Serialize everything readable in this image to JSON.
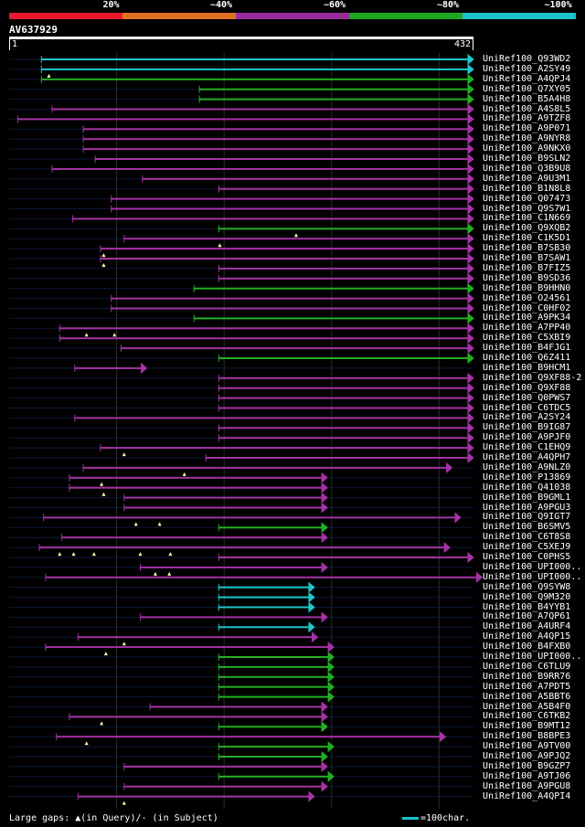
{
  "legend": {
    "segments": [
      {
        "label": "20%",
        "color": "#e8192c"
      },
      {
        "label": "~40%",
        "color": "#e0711e"
      },
      {
        "label": "~60%",
        "color": "#9b2a9c"
      },
      {
        "label": "~80%",
        "color": "#1fa51f"
      },
      {
        "label": "~100%",
        "color": "#19c3c8"
      }
    ]
  },
  "query": {
    "id": "AV637929",
    "length_start": "1",
    "length_end": "432",
    "length": 432
  },
  "colors": {
    "20": "#e8192c",
    "40": "#e0711e",
    "60": "#a533a5",
    "80": "#22b022",
    "100": "#1cc6cc",
    "track": "#0c1a3a",
    "grid": "#2a2a2a",
    "gap": "#ffffaa"
  },
  "chart_data": {
    "type": "alignment-overview",
    "query_length": 432,
    "hits": [
      {
        "name": "UniRef100_Q93WD2",
        "start": 30,
        "end": 432,
        "identity": 100,
        "gaps": []
      },
      {
        "name": "UniRef100_A2SY49",
        "start": 30,
        "end": 432,
        "identity": 100,
        "gaps": [
          37
        ]
      },
      {
        "name": "UniRef100_A4QPJ4",
        "start": 30,
        "end": 432,
        "identity": 80,
        "gaps": []
      },
      {
        "name": "UniRef100_Q7XY05",
        "start": 177,
        "end": 432,
        "identity": 80,
        "gaps": []
      },
      {
        "name": "UniRef100_B5A4H8",
        "start": 177,
        "end": 432,
        "identity": 80,
        "gaps": []
      },
      {
        "name": "UniRef100_A4S8L5",
        "start": 40,
        "end": 432,
        "identity": 60,
        "gaps": []
      },
      {
        "name": "UniRef100_A9TZF8",
        "start": 8,
        "end": 432,
        "identity": 60,
        "gaps": []
      },
      {
        "name": "UniRef100_A9P071",
        "start": 69,
        "end": 432,
        "identity": 60,
        "gaps": []
      },
      {
        "name": "UniRef100_A9NYR8",
        "start": 69,
        "end": 432,
        "identity": 60,
        "gaps": []
      },
      {
        "name": "UniRef100_A9NKX0",
        "start": 69,
        "end": 432,
        "identity": 60,
        "gaps": []
      },
      {
        "name": "UniRef100_B9SLN2",
        "start": 80,
        "end": 432,
        "identity": 60,
        "gaps": []
      },
      {
        "name": "UniRef100_Q3B9U8",
        "start": 40,
        "end": 432,
        "identity": 60,
        "gaps": []
      },
      {
        "name": "UniRef100_A9U3M1",
        "start": 124,
        "end": 432,
        "identity": 60,
        "gaps": []
      },
      {
        "name": "UniRef100_B1N8L8",
        "start": 195,
        "end": 432,
        "identity": 60,
        "gaps": []
      },
      {
        "name": "UniRef100_Q07473",
        "start": 95,
        "end": 432,
        "identity": 60,
        "gaps": []
      },
      {
        "name": "UniRef100_Q9S7W1",
        "start": 95,
        "end": 432,
        "identity": 60,
        "gaps": []
      },
      {
        "name": "UniRef100_C1N669",
        "start": 59,
        "end": 432,
        "identity": 60,
        "gaps": []
      },
      {
        "name": "UniRef100_Q9XQB2",
        "start": 195,
        "end": 432,
        "identity": 80,
        "gaps": [
          267
        ]
      },
      {
        "name": "UniRef100_C1K5D1",
        "start": 107,
        "end": 432,
        "identity": 60,
        "gaps": [
          196
        ]
      },
      {
        "name": "UniRef100_B7SB30",
        "start": 85,
        "end": 432,
        "identity": 60,
        "gaps": [
          88
        ]
      },
      {
        "name": "UniRef100_B7SAW1",
        "start": 85,
        "end": 432,
        "identity": 60,
        "gaps": [
          88
        ]
      },
      {
        "name": "UniRef100_B7FIZ5",
        "start": 195,
        "end": 432,
        "identity": 60,
        "gaps": []
      },
      {
        "name": "UniRef100_B9SD36",
        "start": 195,
        "end": 432,
        "identity": 60,
        "gaps": []
      },
      {
        "name": "UniRef100_B9HHN0",
        "start": 172,
        "end": 432,
        "identity": 80,
        "gaps": []
      },
      {
        "name": "UniRef100_O24561",
        "start": 95,
        "end": 432,
        "identity": 60,
        "gaps": []
      },
      {
        "name": "UniRef100_C0HF02",
        "start": 95,
        "end": 432,
        "identity": 60,
        "gaps": []
      },
      {
        "name": "UniRef100_A9PK34",
        "start": 172,
        "end": 432,
        "identity": 80,
        "gaps": []
      },
      {
        "name": "UniRef100_A7PP40",
        "start": 47,
        "end": 432,
        "identity": 60,
        "gaps": [
          72,
          98
        ]
      },
      {
        "name": "UniRef100_C5XBI9",
        "start": 47,
        "end": 432,
        "identity": 60,
        "gaps": []
      },
      {
        "name": "UniRef100_B4FJG1",
        "start": 104,
        "end": 432,
        "identity": 60,
        "gaps": []
      },
      {
        "name": "UniRef100_Q6Z411",
        "start": 195,
        "end": 432,
        "identity": 80,
        "gaps": []
      },
      {
        "name": "UniRef100_B9HCM1",
        "start": 61,
        "end": 128,
        "identity": 60,
        "gaps": []
      },
      {
        "name": "UniRef100_Q9XF88-2",
        "start": 195,
        "end": 432,
        "identity": 60,
        "gaps": []
      },
      {
        "name": "UniRef100_Q9XF88",
        "start": 195,
        "end": 432,
        "identity": 60,
        "gaps": []
      },
      {
        "name": "UniRef100_Q0PWS7",
        "start": 195,
        "end": 432,
        "identity": 60,
        "gaps": []
      },
      {
        "name": "UniRef100_C6TDC5",
        "start": 195,
        "end": 432,
        "identity": 60,
        "gaps": []
      },
      {
        "name": "UniRef100_A2SY24",
        "start": 61,
        "end": 432,
        "identity": 60,
        "gaps": []
      },
      {
        "name": "UniRef100_B9IG87",
        "start": 195,
        "end": 432,
        "identity": 60,
        "gaps": []
      },
      {
        "name": "UniRef100_A9PJF0",
        "start": 195,
        "end": 432,
        "identity": 60,
        "gaps": []
      },
      {
        "name": "UniRef100_C1EHQ9",
        "start": 85,
        "end": 432,
        "identity": 60,
        "gaps": [
          107
        ]
      },
      {
        "name": "UniRef100_A4QPH7",
        "start": 183,
        "end": 432,
        "identity": 60,
        "gaps": []
      },
      {
        "name": "UniRef100_A9NLZ0",
        "start": 69,
        "end": 412,
        "identity": 60,
        "gaps": [
          163
        ]
      },
      {
        "name": "UniRef100_P13869",
        "start": 56,
        "end": 296,
        "identity": 60,
        "gaps": [
          86
        ]
      },
      {
        "name": "UniRef100_Q41038",
        "start": 56,
        "end": 296,
        "identity": 60,
        "gaps": [
          88
        ]
      },
      {
        "name": "UniRef100_B9GML1",
        "start": 107,
        "end": 296,
        "identity": 60,
        "gaps": []
      },
      {
        "name": "UniRef100_A9PGU3",
        "start": 107,
        "end": 296,
        "identity": 60,
        "gaps": []
      },
      {
        "name": "UniRef100_Q9IGT7",
        "start": 32,
        "end": 420,
        "identity": 60,
        "gaps": [
          118,
          140
        ]
      },
      {
        "name": "UniRef100_B6SMV5",
        "start": 195,
        "end": 296,
        "identity": 80,
        "gaps": []
      },
      {
        "name": "UniRef100_C6T8S8",
        "start": 49,
        "end": 296,
        "identity": 60,
        "gaps": []
      },
      {
        "name": "UniRef100_C5XEJ9",
        "start": 28,
        "end": 410,
        "identity": 60,
        "gaps": [
          47,
          60,
          79,
          122,
          150
        ]
      },
      {
        "name": "UniRef100_C0PHS5",
        "start": 195,
        "end": 432,
        "identity": 60,
        "gaps": []
      },
      {
        "name": "UniRef100_UPI000..",
        "start": 122,
        "end": 296,
        "identity": 60,
        "gaps": [
          136,
          149
        ]
      },
      {
        "name": "UniRef100_UPI000..",
        "start": 34,
        "end": 440,
        "identity": 60,
        "gaps": []
      },
      {
        "name": "UniRef100_Q9SYW8",
        "start": 195,
        "end": 284,
        "identity": 100,
        "gaps": []
      },
      {
        "name": "UniRef100_Q9M320",
        "start": 195,
        "end": 284,
        "identity": 100,
        "gaps": []
      },
      {
        "name": "UniRef100_B4YYB1",
        "start": 195,
        "end": 284,
        "identity": 100,
        "gaps": []
      },
      {
        "name": "UniRef100_A7QP61",
        "start": 122,
        "end": 296,
        "identity": 60,
        "gaps": []
      },
      {
        "name": "UniRef100_A4URF4",
        "start": 195,
        "end": 284,
        "identity": 100,
        "gaps": []
      },
      {
        "name": "UniRef100_A4QP15",
        "start": 64,
        "end": 287,
        "identity": 60,
        "gaps": [
          107
        ]
      },
      {
        "name": "UniRef100_B4FXB0",
        "start": 34,
        "end": 302,
        "identity": 60,
        "gaps": [
          90
        ]
      },
      {
        "name": "UniRef100_UPI000..",
        "start": 195,
        "end": 302,
        "identity": 80,
        "gaps": []
      },
      {
        "name": "UniRef100_C6TLU9",
        "start": 195,
        "end": 302,
        "identity": 80,
        "gaps": []
      },
      {
        "name": "UniRef100_B9RR76",
        "start": 195,
        "end": 302,
        "identity": 80,
        "gaps": []
      },
      {
        "name": "UniRef100_A7PDT5",
        "start": 195,
        "end": 302,
        "identity": 80,
        "gaps": []
      },
      {
        "name": "UniRef100_A5BBT6",
        "start": 195,
        "end": 302,
        "identity": 80,
        "gaps": []
      },
      {
        "name": "UniRef100_A5B4F0",
        "start": 131,
        "end": 296,
        "identity": 60,
        "gaps": []
      },
      {
        "name": "UniRef100_C6TKB2",
        "start": 56,
        "end": 296,
        "identity": 60,
        "gaps": [
          86
        ]
      },
      {
        "name": "UniRef100_B9MT12",
        "start": 195,
        "end": 296,
        "identity": 80,
        "gaps": []
      },
      {
        "name": "UniRef100_B8BPE3",
        "start": 44,
        "end": 406,
        "identity": 60,
        "gaps": [
          72
        ]
      },
      {
        "name": "UniRef100_A9TV00",
        "start": 195,
        "end": 302,
        "identity": 80,
        "gaps": []
      },
      {
        "name": "UniRef100_A9PJQ2",
        "start": 195,
        "end": 296,
        "identity": 80,
        "gaps": []
      },
      {
        "name": "UniRef100_B9GZP7",
        "start": 107,
        "end": 296,
        "identity": 60,
        "gaps": []
      },
      {
        "name": "UniRef100_A9TJ06",
        "start": 195,
        "end": 302,
        "identity": 80,
        "gaps": []
      },
      {
        "name": "UniRef100_A9PGU8",
        "start": 107,
        "end": 296,
        "identity": 60,
        "gaps": []
      },
      {
        "name": "UniRef100_A4QPI4",
        "start": 64,
        "end": 284,
        "identity": 60,
        "gaps": [
          107
        ]
      }
    ]
  },
  "footer": {
    "text": "Large gaps: ▲(in Query)/- (in Subject)"
  },
  "scale": {
    "label": "=100char."
  }
}
